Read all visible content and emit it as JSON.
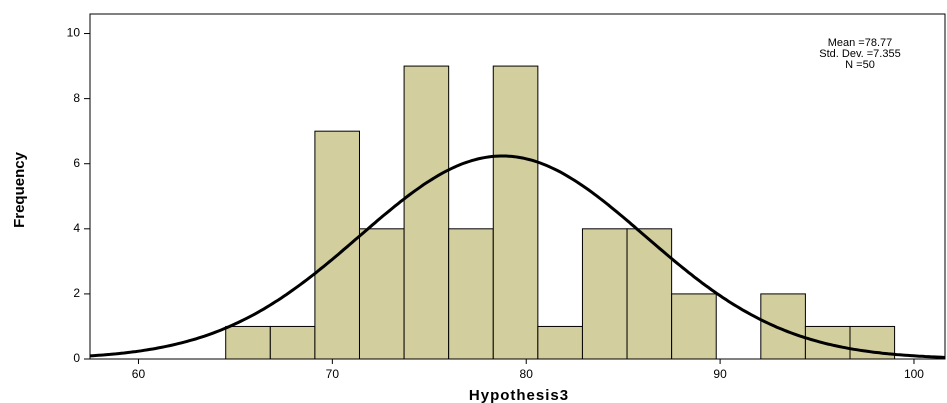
{
  "chart_data": {
    "type": "histogram",
    "xlabel": "Hypothesis3",
    "ylabel": "Frequency",
    "bins": [
      64.5,
      66.8,
      69.1,
      71.4,
      73.7,
      76.0,
      78.3,
      80.6,
      82.9,
      85.2,
      87.5,
      89.8,
      92.1,
      94.4,
      96.7,
      99.0
    ],
    "values": [
      1,
      1,
      7,
      4,
      9,
      4,
      9,
      1,
      4,
      4,
      2,
      0,
      2,
      1,
      1
    ],
    "color": "#d3ce9d",
    "stats": {
      "mean": {
        "value": 78.77,
        "label": "Mean =78.77"
      },
      "sd": {
        "value": 7.355,
        "label": "Std. Dev. =7.355"
      },
      "n": {
        "value": 50,
        "label": "N =50"
      }
    },
    "xlim": [
      57.5,
      101.6
    ],
    "xticks": [
      60,
      70,
      80,
      90,
      100
    ],
    "ylim": [
      0,
      10.6
    ],
    "yticks": [
      0,
      2,
      4,
      6,
      8,
      10
    ]
  }
}
